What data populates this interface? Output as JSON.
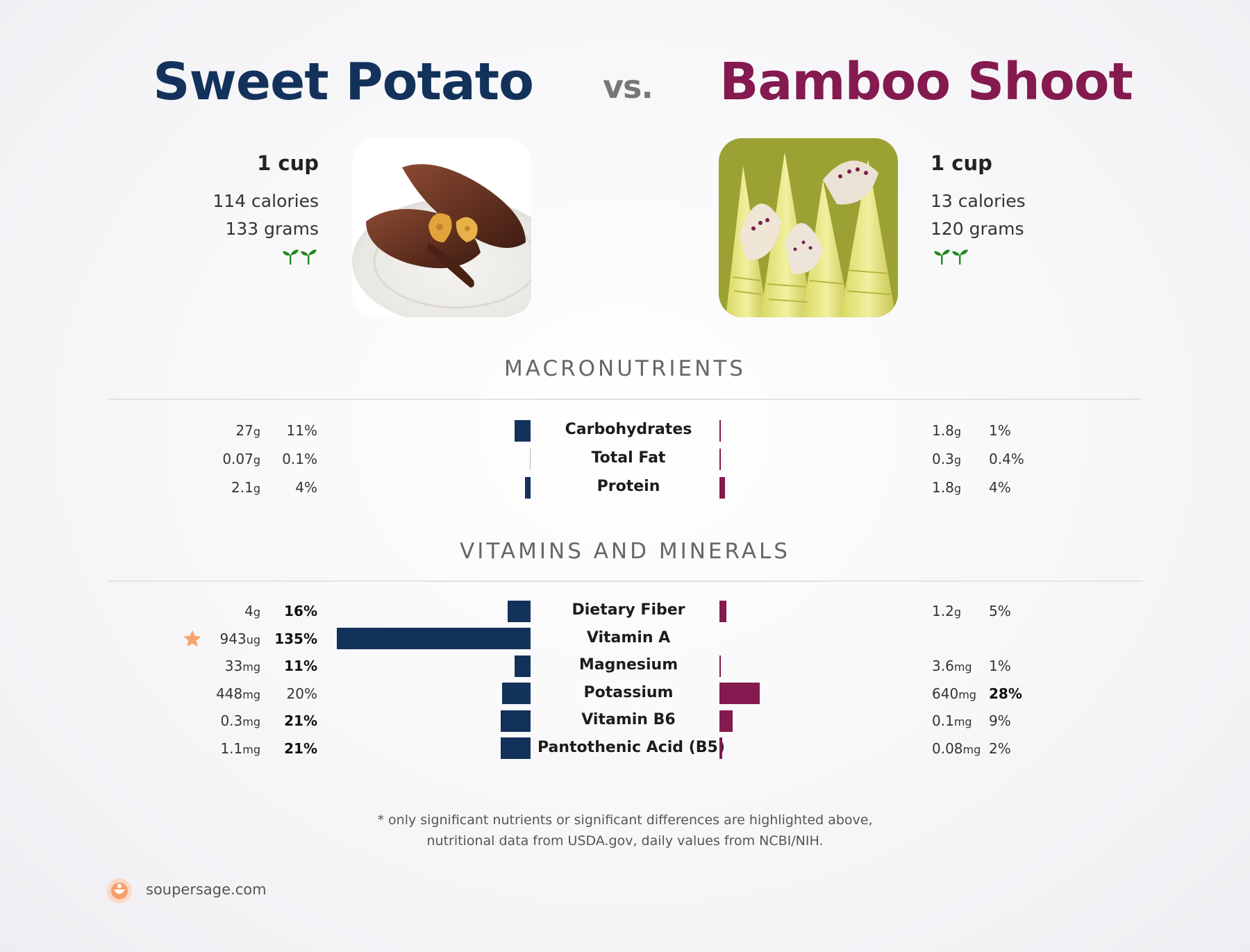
{
  "header": {
    "left_title": "Sweet Potato",
    "vs": "vs.",
    "right_title": "Bamboo Shoot"
  },
  "left_food": {
    "serving": "1 cup",
    "calories": "114 calories",
    "grams": "133 grams",
    "icon": "sprout-icon"
  },
  "right_food": {
    "serving": "1 cup",
    "calories": "13 calories",
    "grams": "120 grams",
    "icon": "sprout-icon"
  },
  "sections": {
    "macro_title": "MACRONUTRIENTS",
    "vitamin_title": "VITAMINS AND MINERALS"
  },
  "colors": {
    "left": "#13325b",
    "right": "#841a4f",
    "star": "#f7a56c",
    "sprout": "#1e8a1e"
  },
  "chart_data": [
    {
      "type": "bar",
      "section": "MACRONUTRIENTS",
      "categories": [
        "Carbohydrates",
        "Total Fat",
        "Protein"
      ],
      "series": [
        {
          "name": "Sweet Potato",
          "amounts": [
            "27",
            "0.07",
            "2.1"
          ],
          "units": [
            "g",
            "g",
            "g"
          ],
          "pct_labels": [
            "11%",
            "0.1%",
            "4%"
          ],
          "values": [
            11,
            0.1,
            4
          ],
          "bold": [
            false,
            false,
            false
          ]
        },
        {
          "name": "Bamboo Shoot",
          "amounts": [
            "1.8",
            "0.3",
            "1.8"
          ],
          "units": [
            "g",
            "g",
            "g"
          ],
          "pct_labels": [
            "1%",
            "0.4%",
            "4%"
          ],
          "values": [
            1,
            0.4,
            4
          ],
          "bold": [
            false,
            false,
            false
          ]
        }
      ]
    },
    {
      "type": "bar",
      "section": "VITAMINS AND MINERALS",
      "categories": [
        "Dietary Fiber",
        "Vitamin A",
        "Magnesium",
        "Potassium",
        "Vitamin B6",
        "Pantothenic Acid (B5)"
      ],
      "series": [
        {
          "name": "Sweet Potato",
          "amounts": [
            "4",
            "943",
            "33",
            "448",
            "0.3",
            "1.1"
          ],
          "units": [
            "g",
            "ug",
            "mg",
            "mg",
            "mg",
            "mg"
          ],
          "pct_labels": [
            "16%",
            "135%",
            "11%",
            "20%",
            "21%",
            "21%"
          ],
          "values": [
            16,
            135,
            11,
            20,
            21,
            21
          ],
          "bold": [
            true,
            true,
            true,
            false,
            true,
            true
          ],
          "star_row": 1
        },
        {
          "name": "Bamboo Shoot",
          "amounts": [
            "1.2",
            "",
            "3.6",
            "640",
            "0.1",
            "0.08"
          ],
          "units": [
            "g",
            "",
            "mg",
            "mg",
            "mg",
            "mg"
          ],
          "pct_labels": [
            "5%",
            "",
            "1%",
            "28%",
            "9%",
            "2%"
          ],
          "values": [
            5,
            0,
            1,
            28,
            9,
            2
          ],
          "bold": [
            false,
            false,
            false,
            true,
            false,
            false
          ]
        }
      ]
    }
  ],
  "footnote": {
    "line1": "* only significant nutrients or significant differences are highlighted above,",
    "line2": "nutritional data from USDA.gov, daily values from NCBI/NIH."
  },
  "footer": {
    "site": "soupersage.com",
    "logo_icon": "soupersage-logo-icon"
  }
}
